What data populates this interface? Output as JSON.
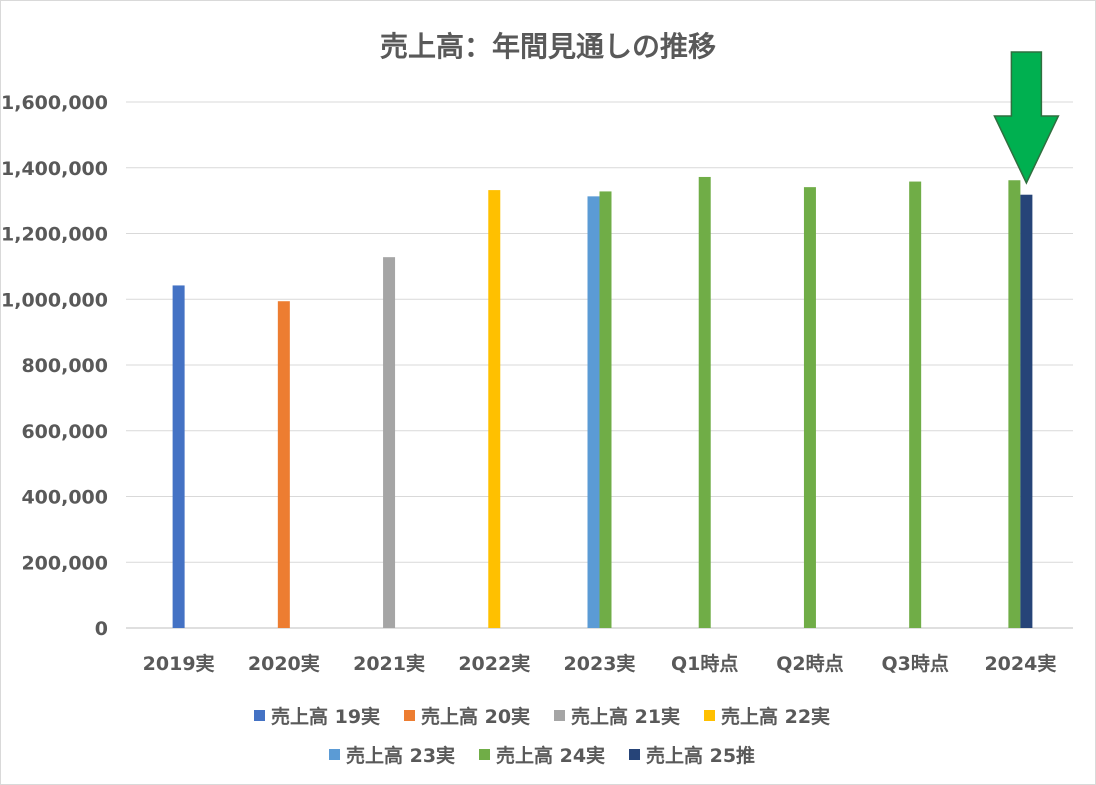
{
  "chart_data": {
    "type": "bar",
    "title": "売上高：年間見通しの推移",
    "xlabel": "",
    "ylabel": "",
    "categories": [
      "2019実",
      "2020実",
      "2021実",
      "2022実",
      "2023実",
      "Q1時点",
      "Q2時点",
      "Q3時点",
      "2024実"
    ],
    "ylim": [
      0,
      1600000
    ],
    "yticks": [
      0,
      200000,
      400000,
      600000,
      800000,
      1000000,
      1200000,
      1400000,
      1600000
    ],
    "ytick_labels": [
      "0",
      "200,000",
      "400,000",
      "600,000",
      "800,000",
      "1,000,000",
      "1,200,000",
      "1,400,000",
      "1,600,000"
    ],
    "grid": true,
    "legend_position": "bottom",
    "series": [
      {
        "name": "売上高 19実",
        "color": "#4472C4",
        "values": [
          1042000,
          null,
          null,
          null,
          null,
          null,
          null,
          null,
          null
        ]
      },
      {
        "name": "売上高 20実",
        "color": "#ED7D31",
        "values": [
          null,
          994000,
          null,
          null,
          null,
          null,
          null,
          null,
          null
        ]
      },
      {
        "name": "売上高 21実",
        "color": "#A5A5A5",
        "values": [
          null,
          null,
          1128000,
          null,
          null,
          null,
          null,
          null,
          null
        ]
      },
      {
        "name": "売上高 22実",
        "color": "#FFC000",
        "values": [
          null,
          null,
          null,
          1332000,
          null,
          null,
          null,
          null,
          null
        ]
      },
      {
        "name": "売上高 23実",
        "color": "#5B9BD5",
        "values": [
          null,
          null,
          null,
          null,
          1313000,
          null,
          null,
          null,
          null
        ]
      },
      {
        "name": "売上高 24実",
        "color": "#70AD47",
        "values": [
          null,
          null,
          null,
          null,
          1328000,
          1372000,
          1341000,
          1358000,
          1362000
        ]
      },
      {
        "name": "売上高 25推",
        "color": "#264478",
        "values": [
          null,
          null,
          null,
          null,
          null,
          null,
          null,
          null,
          1318000
        ]
      }
    ],
    "annotation": {
      "shape": "down-arrow",
      "color": "#00B050",
      "category": "2024実"
    }
  }
}
